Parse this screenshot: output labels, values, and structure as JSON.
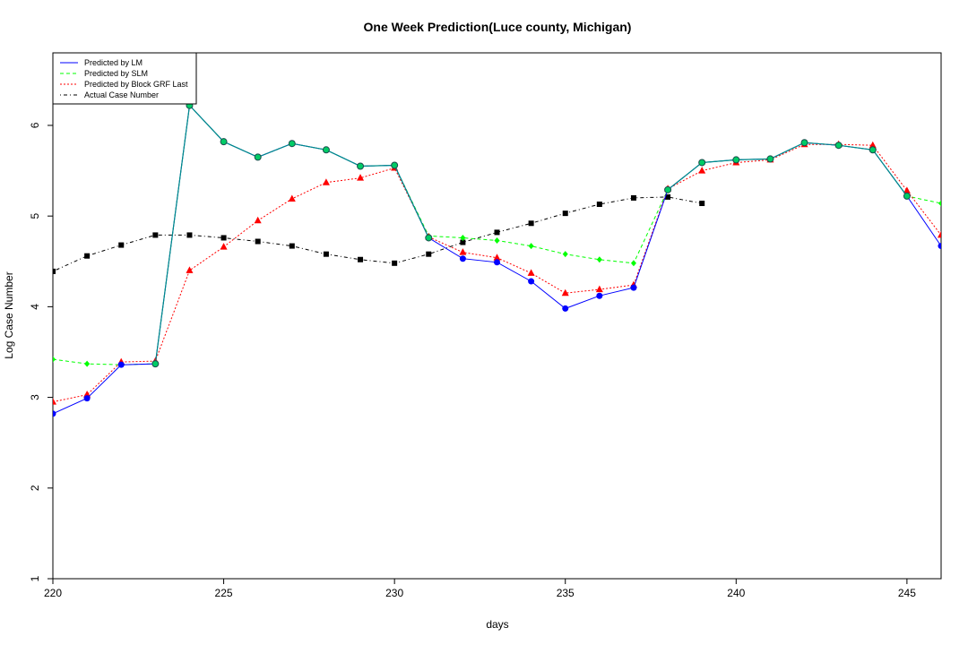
{
  "chart_data": {
    "type": "line",
    "title": "One Week Prediction(Luce county, Michigan)",
    "xlabel": "days",
    "ylabel": "Log Case Number",
    "xlim": [
      220,
      246
    ],
    "ylim": [
      1,
      6.8
    ],
    "xticks": [
      220,
      225,
      230,
      235,
      240,
      245
    ],
    "yticks": [
      1,
      2,
      3,
      4,
      5,
      6
    ],
    "grid": false,
    "legend_position": "top-left",
    "series": [
      {
        "name": "Predicted by LM",
        "color": "#0000ff",
        "line_style": "solid",
        "marker": "circle",
        "x": [
          220,
          221,
          222,
          223,
          224,
          225,
          226,
          227,
          228,
          229,
          230,
          231,
          232,
          233,
          234,
          235,
          236,
          237,
          238,
          239,
          240,
          241,
          242,
          243,
          244,
          245,
          246
        ],
        "y": [
          2.82,
          2.99,
          3.36,
          3.37,
          6.22,
          5.82,
          5.65,
          5.8,
          5.73,
          5.55,
          5.56,
          4.76,
          4.53,
          4.49,
          4.28,
          3.98,
          4.12,
          4.21,
          5.29,
          5.59,
          5.62,
          5.63,
          5.81,
          5.78,
          5.73,
          5.22,
          4.67
        ]
      },
      {
        "name": "Predicted by SLM",
        "color": "#00ff00",
        "line_style": "dashed",
        "marker": "diamond",
        "x": [
          220,
          221,
          222,
          223,
          224,
          225,
          226,
          227,
          228,
          229,
          230,
          231,
          232,
          233,
          234,
          235,
          236,
          237,
          238,
          239,
          240,
          241,
          242,
          243,
          244,
          245,
          246
        ],
        "y": [
          3.42,
          3.37,
          3.36,
          3.37,
          6.22,
          5.82,
          5.65,
          5.8,
          5.73,
          5.55,
          5.56,
          4.78,
          4.76,
          4.73,
          4.67,
          4.58,
          4.52,
          4.48,
          5.29,
          5.59,
          5.62,
          5.63,
          5.81,
          5.78,
          5.73,
          5.22,
          5.14
        ]
      },
      {
        "name": "Predicted by Block GRF Last",
        "color": "#ff0000",
        "line_style": "dotted",
        "marker": "triangle",
        "x": [
          220,
          221,
          222,
          223,
          224,
          225,
          226,
          227,
          228,
          229,
          230,
          231,
          232,
          233,
          234,
          235,
          236,
          237,
          238,
          239,
          240,
          241,
          242,
          243,
          244,
          245,
          246
        ],
        "y": [
          2.95,
          3.03,
          3.39,
          3.4,
          4.4,
          4.66,
          4.95,
          5.19,
          5.37,
          5.42,
          5.53,
          4.77,
          4.6,
          4.54,
          4.37,
          4.15,
          4.19,
          4.24,
          5.3,
          5.5,
          5.59,
          5.62,
          5.79,
          5.79,
          5.78,
          5.28,
          4.79
        ]
      },
      {
        "name": "Actual Case Number",
        "color": "#000000",
        "line_style": "dotdash",
        "marker": "square",
        "x": [
          220,
          221,
          222,
          223,
          224,
          225,
          226,
          227,
          228,
          229,
          230,
          231,
          232,
          233,
          234,
          235,
          236,
          237,
          238,
          239
        ],
        "y": [
          4.39,
          4.56,
          4.68,
          4.79,
          4.79,
          4.76,
          4.72,
          4.67,
          4.58,
          4.52,
          4.48,
          4.58,
          4.71,
          4.82,
          4.92,
          5.03,
          5.13,
          5.2,
          5.21,
          5.14
        ]
      }
    ],
    "overlay_series": {
      "color": "#008b8b",
      "marker_fill": "#00cc66",
      "x": [
        223,
        224,
        225,
        226,
        227,
        228,
        229,
        230,
        231,
        238,
        239,
        240,
        241,
        242,
        243,
        244,
        245
      ],
      "y": [
        3.37,
        6.22,
        5.82,
        5.65,
        5.8,
        5.73,
        5.55,
        5.56,
        4.76,
        5.29,
        5.59,
        5.62,
        5.63,
        5.81,
        5.78,
        5.73,
        5.22
      ]
    }
  }
}
